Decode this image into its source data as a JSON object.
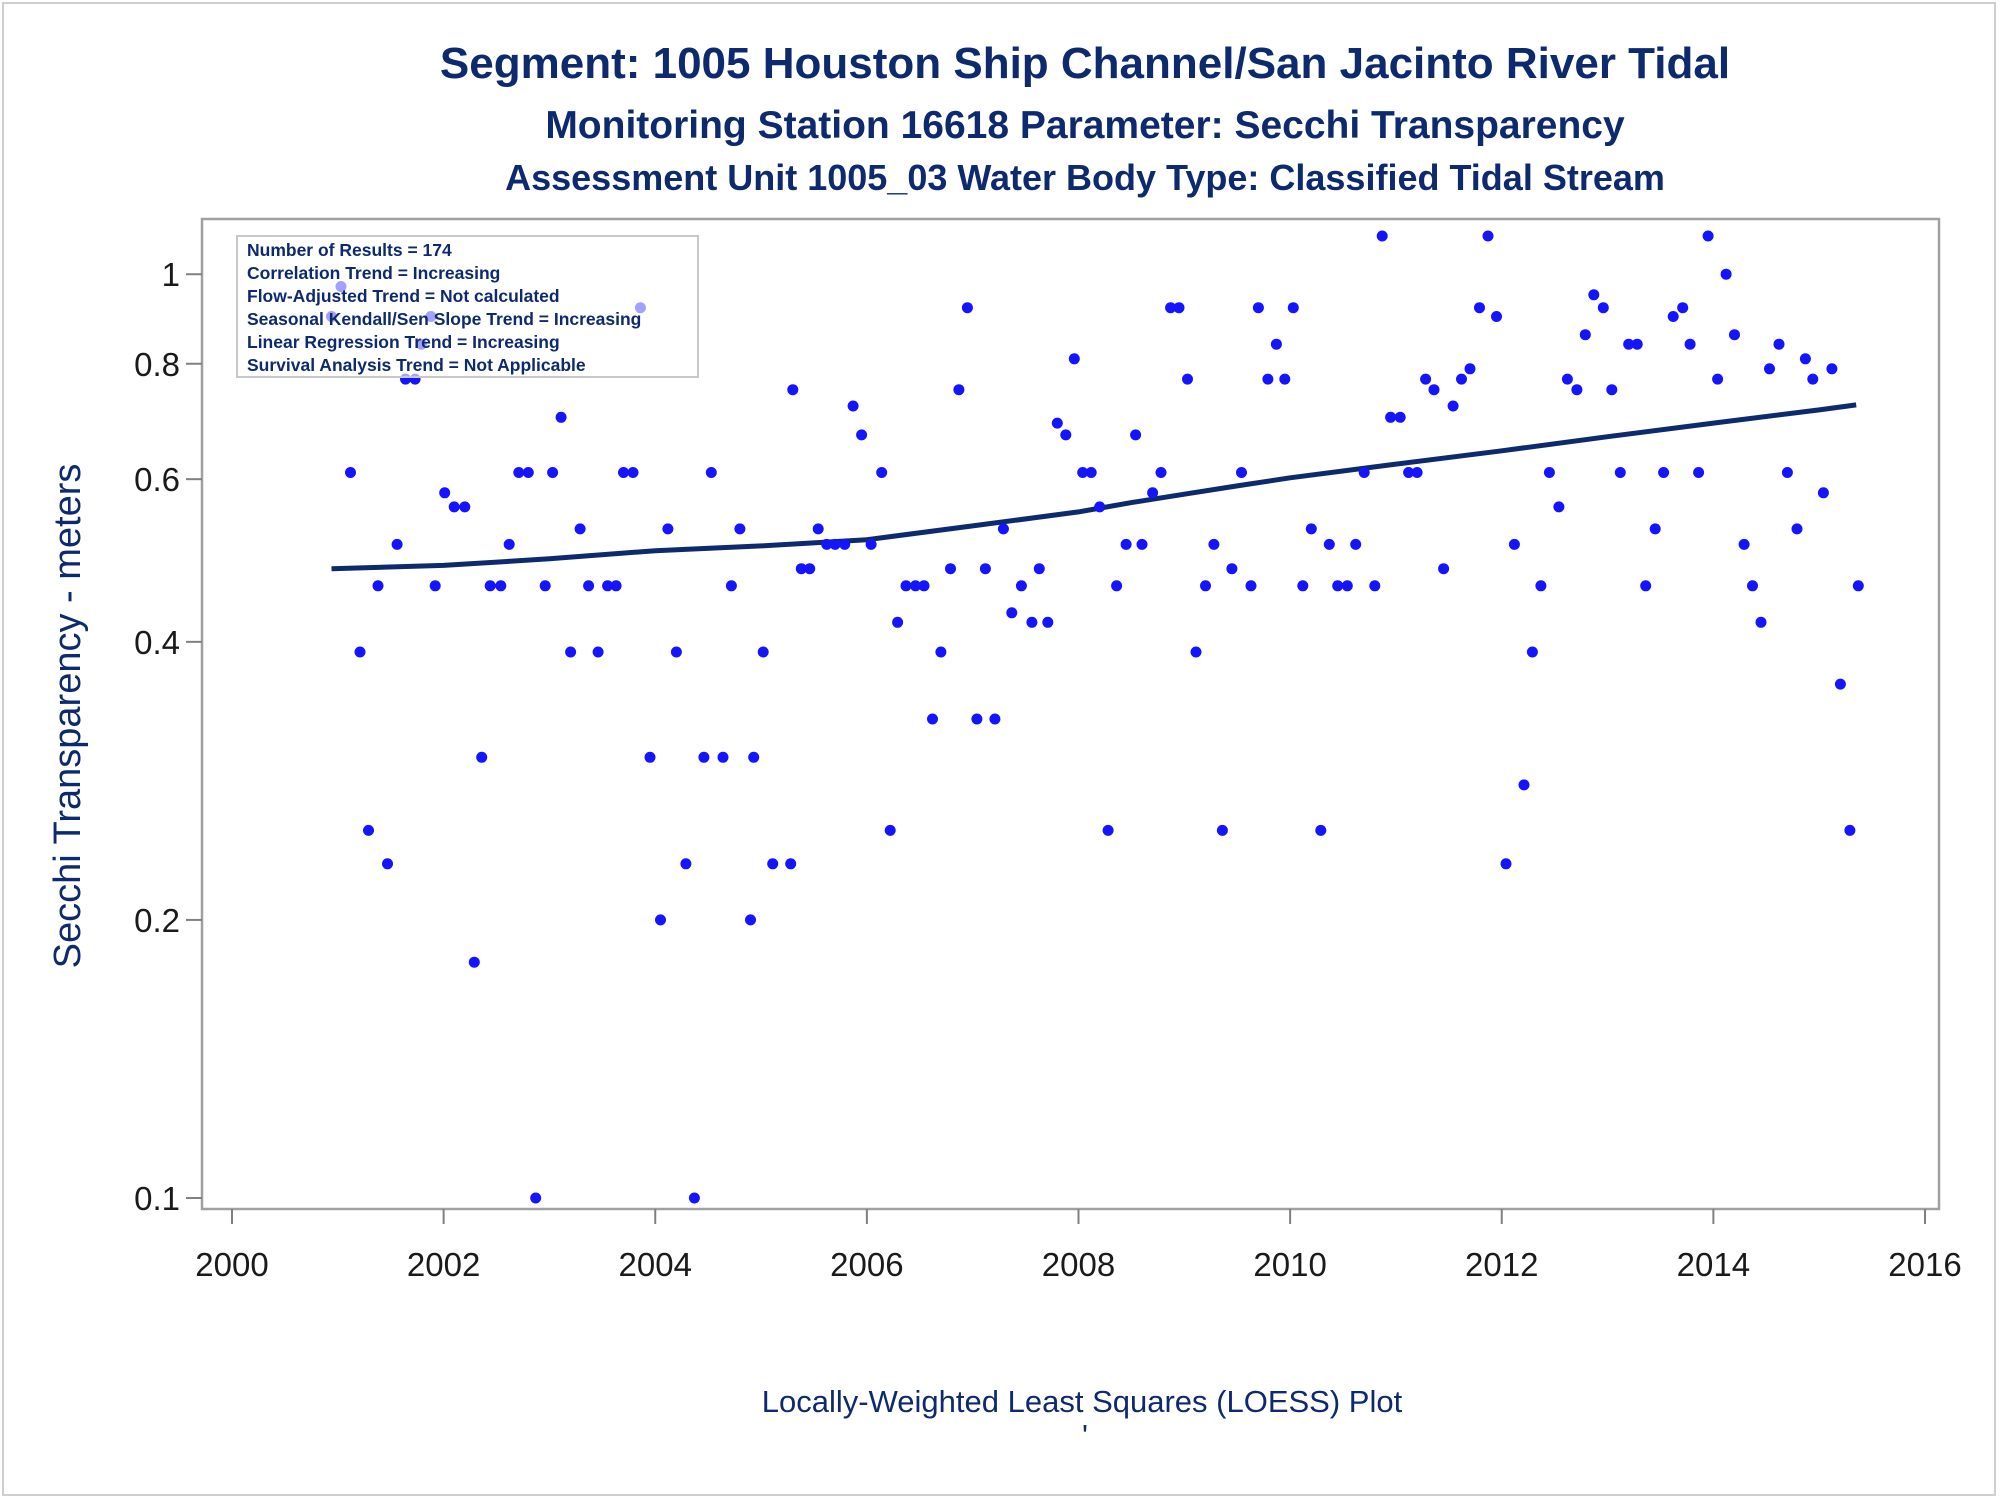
{
  "chart_data": {
    "type": "scatter",
    "title": "Segment: 1005  Houston Ship Channel/San Jacinto River Tidal",
    "subtitle1": "Monitoring Station 16618 Parameter: Secchi Transparency",
    "subtitle2": "Assessment Unit 1005_03   Water Body Type: Classified Tidal Stream",
    "ylabel": "Secchi Transparency - meters",
    "xlabel": "",
    "footnote": "Locally-Weighted Least Squares (LOESS) Plot",
    "footnote_mark": "'",
    "y_scale": "log",
    "xlim": [
      2000,
      2016
    ],
    "ylim": [
      0.1,
      1.1
    ],
    "x_ticks": [
      2000,
      2002,
      2004,
      2006,
      2008,
      2010,
      2012,
      2014,
      2016
    ],
    "y_ticks": [
      0.1,
      0.2,
      0.4,
      0.6,
      0.8,
      1
    ],
    "y_tick_labels": [
      "0.1",
      "0.2",
      "0.4",
      "0.6",
      "0.8",
      "1"
    ],
    "grid": false,
    "stats_box": {
      "placement": "top-left",
      "lines": [
        "Number of Results = 174",
        "Correlation Trend = Increasing",
        "Flow-Adjusted Trend = Not calculated",
        "Seasonal Kendall/Sen Slope Trend = Increasing",
        "Linear Regression Trend = Increasing",
        "Survival Analysis Trend = Not Applicable"
      ]
    },
    "series": [
      {
        "mark": "points",
        "color": "#1414ff",
        "x": [
          2000.94,
          2001.03,
          2001.12,
          2001.21,
          2001.29,
          2001.38,
          2001.47,
          2001.56,
          2001.64,
          2001.73,
          2001.79,
          2001.88,
          2001.92,
          2002.01,
          2002.1,
          2002.2,
          2002.29,
          2002.36,
          2002.44,
          2002.54,
          2002.62,
          2002.71,
          2002.8,
          2002.87,
          2002.96,
          2003.03,
          2003.11,
          2003.2,
          2003.29,
          2003.37,
          2003.46,
          2003.55,
          2003.63,
          2003.7,
          2003.79,
          2003.86,
          2003.95,
          2004.05,
          2004.12,
          2004.2,
          2004.29,
          2004.37,
          2004.46,
          2004.53,
          2004.64,
          2004.72,
          2004.8,
          2004.9,
          2004.93,
          2005.02,
          2005.11,
          2005.28,
          2005.3,
          2005.38,
          2005.46,
          2005.54,
          2005.62,
          2005.7,
          2005.79,
          2005.87,
          2005.95,
          2006.04,
          2006.14,
          2006.22,
          2006.29,
          2006.37,
          2006.46,
          2006.54,
          2006.62,
          2006.7,
          2006.79,
          2006.87,
          2006.95,
          2007.04,
          2007.12,
          2007.21,
          2007.29,
          2007.37,
          2007.46,
          2007.56,
          2007.63,
          2007.71,
          2007.8,
          2007.88,
          2007.96,
          2008.04,
          2008.12,
          2008.2,
          2008.28,
          2008.36,
          2008.45,
          2008.54,
          2008.6,
          2008.7,
          2008.78,
          2008.87,
          2008.95,
          2009.03,
          2009.11,
          2009.2,
          2009.28,
          2009.36,
          2009.45,
          2009.54,
          2009.63,
          2009.7,
          2009.79,
          2009.87,
          2009.95,
          2010.03,
          2010.12,
          2010.2,
          2010.29,
          2010.37,
          2010.45,
          2010.54,
          2010.62,
          2010.7,
          2010.8,
          2010.87,
          2010.95,
          2011.04,
          2011.12,
          2011.2,
          2011.28,
          2011.36,
          2011.45,
          2011.54,
          2011.62,
          2011.7,
          2011.79,
          2011.87,
          2011.95,
          2012.04,
          2012.12,
          2012.21,
          2012.29,
          2012.37,
          2012.45,
          2012.54,
          2012.62,
          2012.71,
          2012.79,
          2012.87,
          2012.96,
          2013.04,
          2013.12,
          2013.2,
          2013.28,
          2013.36,
          2013.45,
          2013.53,
          2013.62,
          2013.71,
          2013.78,
          2013.86,
          2013.95,
          2014.04,
          2014.12,
          2014.2,
          2014.29,
          2014.37,
          2014.45,
          2014.53,
          2014.62,
          2014.7,
          2014.79,
          2014.87,
          2014.94,
          2015.04,
          2015.12,
          2015.2,
          2015.29,
          2015.37
        ],
        "y": [
          0.9,
          0.97,
          0.61,
          0.39,
          0.25,
          0.46,
          0.23,
          0.51,
          0.77,
          0.77,
          0.84,
          0.9,
          0.46,
          0.58,
          0.56,
          0.56,
          0.18,
          0.3,
          0.46,
          0.46,
          0.51,
          0.61,
          0.61,
          0.1,
          0.46,
          0.61,
          0.7,
          0.39,
          0.53,
          0.46,
          0.39,
          0.46,
          0.46,
          0.61,
          0.61,
          0.92,
          0.3,
          0.2,
          0.53,
          0.39,
          0.23,
          0.1,
          0.3,
          0.61,
          0.3,
          0.46,
          0.53,
          0.2,
          0.3,
          0.39,
          0.23,
          0.23,
          0.75,
          0.48,
          0.48,
          0.53,
          0.51,
          0.51,
          0.51,
          0.72,
          0.67,
          0.51,
          0.61,
          0.25,
          0.42,
          0.46,
          0.46,
          0.46,
          0.33,
          0.39,
          0.48,
          0.75,
          0.92,
          0.33,
          0.48,
          0.33,
          0.53,
          0.43,
          0.46,
          0.42,
          0.48,
          0.42,
          0.69,
          0.67,
          0.81,
          0.61,
          0.61,
          0.56,
          0.25,
          0.46,
          0.51,
          0.67,
          0.51,
          0.58,
          0.61,
          0.92,
          0.92,
          0.77,
          0.39,
          0.46,
          0.51,
          0.25,
          0.48,
          0.61,
          0.46,
          0.92,
          0.77,
          0.84,
          0.77,
          0.92,
          0.46,
          0.53,
          0.25,
          0.51,
          0.46,
          0.46,
          0.51,
          0.61,
          0.46,
          1.1,
          0.7,
          0.7,
          0.61,
          0.61,
          0.77,
          0.75,
          0.48,
          0.72,
          0.77,
          0.79,
          0.92,
          1.1,
          0.9,
          0.23,
          0.51,
          0.28,
          0.39,
          0.46,
          0.61,
          0.56,
          0.77,
          0.75,
          0.86,
          0.95,
          0.92,
          0.75,
          0.61,
          0.84,
          0.84,
          0.46,
          0.53,
          0.61,
          0.9,
          0.92,
          0.84,
          0.61,
          1.1,
          0.77,
          1.0,
          0.86,
          0.51,
          0.46,
          0.42,
          0.79,
          0.84,
          0.61,
          0.53,
          0.81,
          0.77,
          0.58,
          0.79,
          0.36,
          0.25,
          0.46
        ]
      },
      {
        "mark": "line",
        "name": "LOESS",
        "color": "#0d2a6e",
        "x": [
          2000.94,
          2002.0,
          2003.0,
          2004.0,
          2005.0,
          2006.0,
          2007.0,
          2008.0,
          2008.5,
          2009.0,
          2009.5,
          2010.0,
          2011.0,
          2012.0,
          2013.0,
          2014.0,
          2015.0,
          2015.35
        ],
        "y": [
          0.48,
          0.484,
          0.492,
          0.502,
          0.508,
          0.516,
          0.534,
          0.553,
          0.566,
          0.578,
          0.59,
          0.602,
          0.623,
          0.644,
          0.667,
          0.69,
          0.713,
          0.722
        ]
      }
    ]
  }
}
